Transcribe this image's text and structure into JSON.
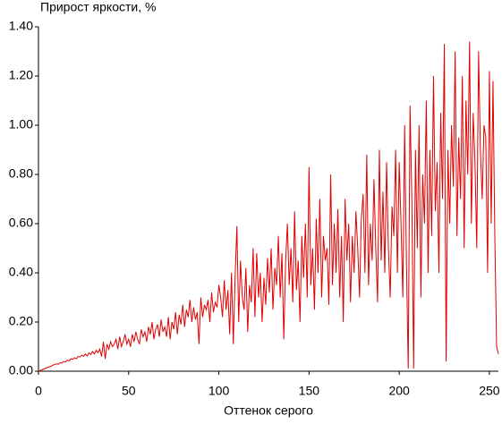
{
  "chart_data": {
    "type": "line",
    "title": "Прирост яркости, %",
    "xlabel": "Оттенок серого",
    "xlim": [
      0,
      255
    ],
    "ylim": [
      0,
      1.4
    ],
    "xticks": [
      0,
      50,
      100,
      150,
      200,
      250
    ],
    "yticks": [
      {
        "value": 0,
        "label": "0.00"
      },
      {
        "value": 0.2,
        "label": "0.20"
      },
      {
        "value": 0.4,
        "label": "0.40"
      },
      {
        "value": 0.6,
        "label": "0.60"
      },
      {
        "value": 0.8,
        "label": "0.80"
      },
      {
        "value": 1.0,
        "label": "1.00"
      },
      {
        "value": 1.2,
        "label": "1.20"
      },
      {
        "value": 1.4,
        "label": "1.40"
      }
    ],
    "x": [
      0,
      1,
      2,
      3,
      4,
      5,
      6,
      7,
      8,
      9,
      10,
      11,
      12,
      13,
      14,
      15,
      16,
      17,
      18,
      19,
      20,
      21,
      22,
      23,
      24,
      25,
      26,
      27,
      28,
      29,
      30,
      31,
      32,
      33,
      34,
      35,
      36,
      37,
      38,
      39,
      40,
      41,
      42,
      43,
      44,
      45,
      46,
      47,
      48,
      49,
      50,
      51,
      52,
      53,
      54,
      55,
      56,
      57,
      58,
      59,
      60,
      61,
      62,
      63,
      64,
      65,
      66,
      67,
      68,
      69,
      70,
      71,
      72,
      73,
      74,
      75,
      76,
      77,
      78,
      79,
      80,
      81,
      82,
      83,
      84,
      85,
      86,
      87,
      88,
      89,
      90,
      91,
      92,
      93,
      94,
      95,
      96,
      97,
      98,
      99,
      100,
      101,
      102,
      103,
      104,
      105,
      106,
      107,
      108,
      109,
      110,
      111,
      112,
      113,
      114,
      115,
      116,
      117,
      118,
      119,
      120,
      121,
      122,
      123,
      124,
      125,
      126,
      127,
      128,
      129,
      130,
      131,
      132,
      133,
      134,
      135,
      136,
      137,
      138,
      139,
      140,
      141,
      142,
      143,
      144,
      145,
      146,
      147,
      148,
      149,
      150,
      151,
      152,
      153,
      154,
      155,
      156,
      157,
      158,
      159,
      160,
      161,
      162,
      163,
      164,
      165,
      166,
      167,
      168,
      169,
      170,
      171,
      172,
      173,
      174,
      175,
      176,
      177,
      178,
      179,
      180,
      181,
      182,
      183,
      184,
      185,
      186,
      187,
      188,
      189,
      190,
      191,
      192,
      193,
      194,
      195,
      196,
      197,
      198,
      199,
      200,
      201,
      202,
      203,
      204,
      205,
      206,
      207,
      208,
      209,
      210,
      211,
      212,
      213,
      214,
      215,
      216,
      217,
      218,
      219,
      220,
      221,
      222,
      223,
      224,
      225,
      226,
      227,
      228,
      229,
      230,
      231,
      232,
      233,
      234,
      235,
      236,
      237,
      238,
      239,
      240,
      241,
      242,
      243,
      244,
      245,
      246,
      247,
      248,
      249,
      250,
      251,
      252,
      253,
      254,
      255
    ],
    "series": [
      {
        "color": "#e00000",
        "values": [
          0,
          0.003,
          0.006,
          0.009,
          0.012,
          0.015,
          0.018,
          0.02,
          0.025,
          0.027,
          0.03,
          0.028,
          0.035,
          0.033,
          0.04,
          0.038,
          0.045,
          0.042,
          0.05,
          0.048,
          0.055,
          0.05,
          0.06,
          0.058,
          0.065,
          0.06,
          0.07,
          0.062,
          0.075,
          0.068,
          0.08,
          0.07,
          0.085,
          0.075,
          0.09,
          0.06,
          0.12,
          0.05,
          0.11,
          0.09,
          0.12,
          0.1,
          0.11,
          0.13,
          0.09,
          0.14,
          0.1,
          0.12,
          0.15,
          0.11,
          0.13,
          0.1,
          0.15,
          0.12,
          0.16,
          0.13,
          0.11,
          0.17,
          0.14,
          0.16,
          0.12,
          0.18,
          0.15,
          0.2,
          0.13,
          0.17,
          0.19,
          0.14,
          0.21,
          0.16,
          0.18,
          0.14,
          0.22,
          0.13,
          0.2,
          0.17,
          0.24,
          0.15,
          0.23,
          0.19,
          0.27,
          0.18,
          0.25,
          0.22,
          0.29,
          0.2,
          0.26,
          0.21,
          0.24,
          0.11,
          0.3,
          0.22,
          0.27,
          0.25,
          0.29,
          0.2,
          0.32,
          0.24,
          0.28,
          0.26,
          0.35,
          0.3,
          0.22,
          0.37,
          0.25,
          0.33,
          0.15,
          0.4,
          0.11,
          0.38,
          0.59,
          0.2,
          0.45,
          0.3,
          0.25,
          0.42,
          0.16,
          0.35,
          0.28,
          0.5,
          0.22,
          0.48,
          0.3,
          0.4,
          0.2,
          0.38,
          0.27,
          0.46,
          0.32,
          0.5,
          0.25,
          0.42,
          0.35,
          0.55,
          0.3,
          0.48,
          0.13,
          0.44,
          0.6,
          0.35,
          0.5,
          0.28,
          0.65,
          0.33,
          0.45,
          0.2,
          0.55,
          0.38,
          0.6,
          0.3,
          0.83,
          0.35,
          0.5,
          0.25,
          0.62,
          0.4,
          0.7,
          0.3,
          0.55,
          0.45,
          0.5,
          0.27,
          0.8,
          0.35,
          0.6,
          0.4,
          0.66,
          0.3,
          0.55,
          0.2,
          0.7,
          0.45,
          0.6,
          0.28,
          0.55,
          0.4,
          0.65,
          0.5,
          0.3,
          0.62,
          0.72,
          0.4,
          0.88,
          0.35,
          0.6,
          0.45,
          0.78,
          0.5,
          0.28,
          0.9,
          0.45,
          0.73,
          0.4,
          0.85,
          0.5,
          0.3,
          0.67,
          0.55,
          0.9,
          0.4,
          0.85,
          0.6,
          0.3,
          1.0,
          0.45,
          0.01,
          1.08,
          0.7,
          0.01,
          0.9,
          0.5,
          1.0,
          0.3,
          0.8,
          0.6,
          1.1,
          0.4,
          0.9,
          0.55,
          1.2,
          0.65,
          0.85,
          0.4,
          1.05,
          0.7,
          1.33,
          0.04,
          0.9,
          0.6,
          1.0,
          0.75,
          1.3,
          0.55,
          0.95,
          0.7,
          1.2,
          0.5,
          1.1,
          0.8,
          1.34,
          0.6,
          1.05,
          0.85,
          0.5,
          1.3,
          0.9,
          0.7,
          1.0,
          0.95,
          0.4,
          1.22,
          0.6,
          1.18,
          0.55,
          0.1,
          0.07
        ]
      }
    ]
  }
}
